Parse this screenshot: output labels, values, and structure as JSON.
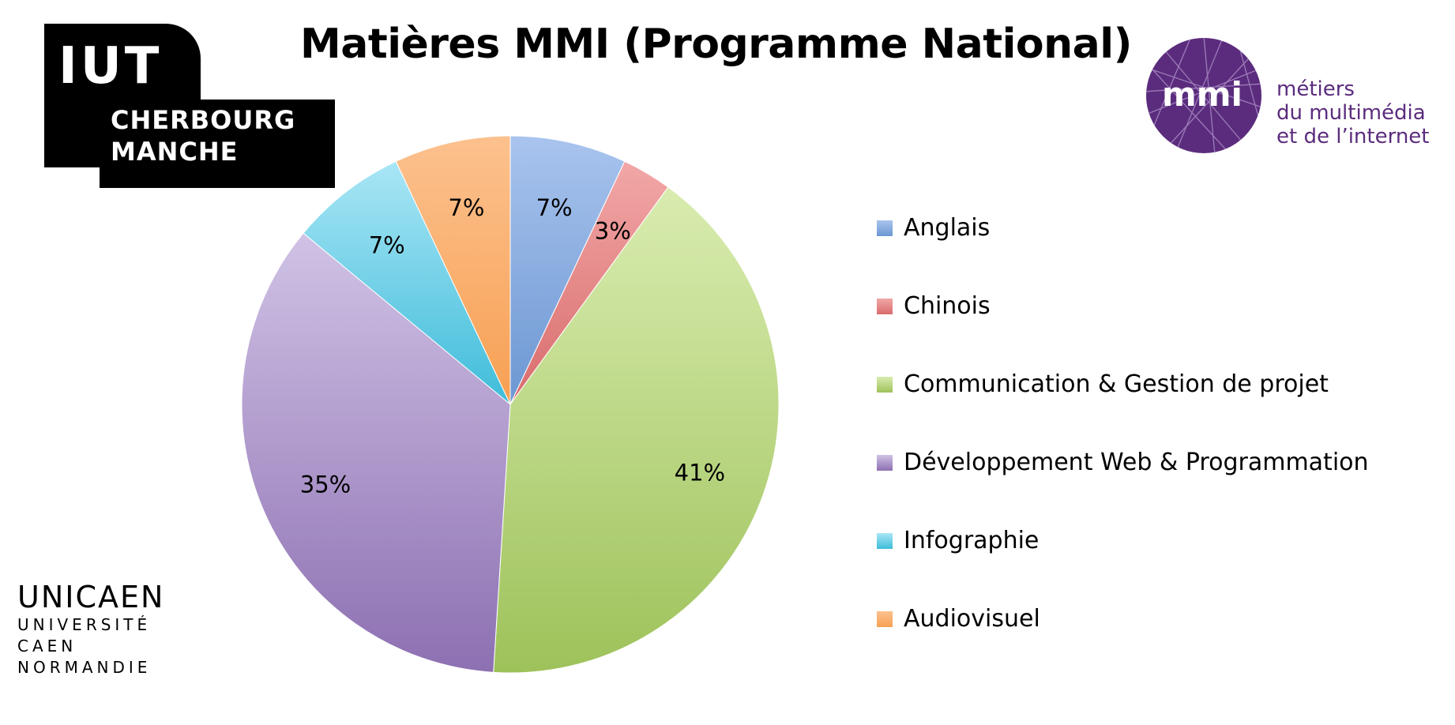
{
  "logos": {
    "iut": {
      "acronym": "IUT",
      "line1": "CHERBOURG",
      "line2": "MANCHE"
    },
    "mmi": {
      "mark": "mmi",
      "line1": "métiers",
      "line2": "du multimédia",
      "line3": "et de l’internet",
      "color": "#5b2c7d"
    },
    "unicaen": {
      "word": "UNICAEN",
      "line1": "UNIVERSITÉ",
      "line2": "CAEN",
      "line3": "NORMANDIE"
    }
  },
  "chart_data": {
    "type": "pie",
    "title": "Matières MMI (Programme National)",
    "legend_position": "right",
    "slices": [
      {
        "name": "Anglais",
        "value": 7,
        "label": "7%",
        "color_top": "#a9c4ee",
        "color_bottom": "#6c97d2"
      },
      {
        "name": "Chinois",
        "value": 3,
        "label": "3%",
        "color_top": "#f2a7a7",
        "color_bottom": "#d96c6c"
      },
      {
        "name": "Communication & Gestion de projet",
        "value": 41,
        "label": "41%",
        "color_top": "#d9ecb0",
        "color_bottom": "#9ec25a"
      },
      {
        "name": "Développement Web & Programmation",
        "value": 35,
        "label": "35%",
        "color_top": "#d0c2e5",
        "color_bottom": "#8d70b2"
      },
      {
        "name": "Infographie",
        "value": 7,
        "label": "7%",
        "color_top": "#a9e6f5",
        "color_bottom": "#3fbcda"
      },
      {
        "name": "Audiovisuel",
        "value": 7,
        "label": "7%",
        "color_top": "#fcc18e",
        "color_bottom": "#f7a053"
      }
    ]
  }
}
